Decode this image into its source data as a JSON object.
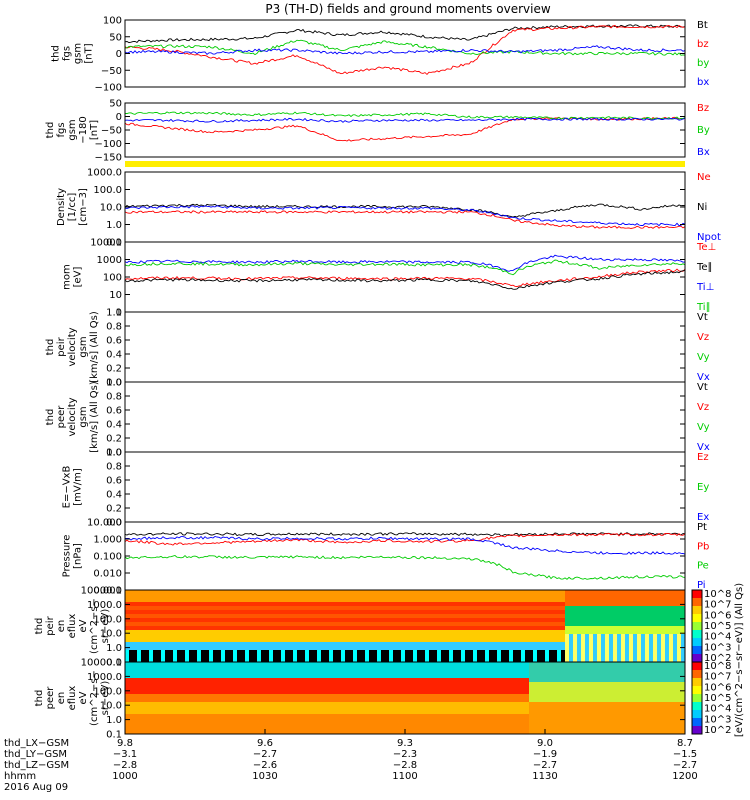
{
  "title": "P3 (TH-D) fields and ground moments overview",
  "chart_data": [
    {
      "type": "line",
      "ylabel": [
        "thd",
        "fgs",
        "gsm",
        "[nT]"
      ],
      "ylim": [
        -100,
        100
      ],
      "yticks": [
        "100",
        "50",
        "0",
        "−50",
        "−100"
      ],
      "series": [
        {
          "name": "Bt",
          "color": "#000000",
          "values": [
            35,
            40,
            42,
            45,
            70,
            55,
            65,
            50,
            40,
            75,
            80,
            82,
            82,
            80
          ]
        },
        {
          "name": "bz",
          "color": "#ff0000",
          "values": [
            20,
            10,
            -10,
            -30,
            -5,
            -60,
            -40,
            -60,
            -30,
            70,
            75,
            80,
            80,
            80
          ]
        },
        {
          "name": "by",
          "color": "#00cc00",
          "values": [
            20,
            22,
            20,
            0,
            40,
            10,
            35,
            20,
            0,
            5,
            0,
            0,
            0,
            -2
          ]
        },
        {
          "name": "bx",
          "color": "#0000ff",
          "values": [
            5,
            5,
            0,
            10,
            10,
            0,
            5,
            5,
            10,
            5,
            10,
            20,
            10,
            10
          ]
        }
      ]
    },
    {
      "type": "line",
      "ylabel": [
        "thd",
        "fgs",
        "gsm",
        "−180",
        "[nT]"
      ],
      "ylim": [
        -175,
        75
      ],
      "yticks": [
        "50",
        "0",
        "−50",
        "−100",
        "−150"
      ],
      "series": [
        {
          "name": "Bz",
          "color": "#ff0000",
          "values": [
            -20,
            -40,
            -60,
            -50,
            -30,
            -100,
            -90,
            -80,
            -70,
            0,
            5,
            0,
            2,
            5
          ]
        },
        {
          "name": "By",
          "color": "#00cc00",
          "values": [
            25,
            30,
            28,
            20,
            30,
            15,
            20,
            25,
            10,
            10,
            5,
            8,
            5,
            5
          ]
        },
        {
          "name": "Bx",
          "color": "#0000ff",
          "values": [
            -5,
            -5,
            -10,
            -5,
            0,
            -10,
            -5,
            -5,
            -5,
            0,
            0,
            0,
            0,
            0
          ]
        }
      ]
    },
    {
      "type": "line",
      "ylabel": [
        "Density",
        "[1/cc]",
        "[cm−3]"
      ],
      "yscale": "log",
      "ylim": [
        0.1,
        2000
      ],
      "yticks": [
        "1000.0",
        "100.0",
        "10.0",
        "1.0",
        "0.1"
      ],
      "series": [
        {
          "name": "Ne",
          "color": "#ff0000",
          "values": [
            7,
            7,
            7,
            7,
            7,
            7,
            7,
            7,
            7,
            2,
            1,
            0.8,
            0.8,
            0.8
          ]
        },
        {
          "name": "Ni",
          "color": "#000000",
          "values": [
            15,
            18,
            18,
            15,
            15,
            15,
            15,
            15,
            10,
            3,
            8,
            20,
            10,
            20
          ]
        },
        {
          "name": "Npot",
          "color": "#0000ff",
          "values": [
            12,
            14,
            15,
            12,
            12,
            13,
            12,
            12,
            9,
            3,
            2,
            1.5,
            1.2,
            1.2
          ]
        }
      ]
    },
    {
      "type": "line",
      "ylabel": [
        "mom",
        "[eV]"
      ],
      "yscale": "log",
      "ylim": [
        1,
        10000
      ],
      "yticks": [
        "10000",
        "1000",
        "100",
        "10",
        "1"
      ],
      "series": [
        {
          "name": "Te⊥",
          "color": "#ff0000",
          "values": [
            80,
            90,
            85,
            80,
            90,
            85,
            80,
            85,
            80,
            30,
            60,
            100,
            200,
            250
          ]
        },
        {
          "name": "Te∥",
          "color": "#000000",
          "values": [
            60,
            70,
            65,
            60,
            70,
            65,
            60,
            70,
            60,
            20,
            50,
            80,
            150,
            200
          ]
        },
        {
          "name": "Ti⊥",
          "color": "#0000ff",
          "values": [
            700,
            800,
            750,
            700,
            800,
            700,
            750,
            700,
            700,
            200,
            1500,
            1000,
            1000,
            800
          ]
        },
        {
          "name": "Ti∥",
          "color": "#00cc00",
          "values": [
            500,
            600,
            550,
            500,
            600,
            500,
            550,
            500,
            500,
            150,
            800,
            300,
            500,
            600
          ]
        }
      ]
    },
    {
      "type": "line",
      "ylabel": [
        "thd",
        "peir",
        "velocity",
        "gsm",
        "[km/s] (All Qs)"
      ],
      "ylim": [
        0,
        1
      ],
      "yticks": [
        "1.0",
        "0.8",
        "0.6",
        "0.4",
        "0.2",
        "0.0"
      ],
      "series": [
        {
          "name": "Vt",
          "color": "#000000"
        },
        {
          "name": "Vz",
          "color": "#ff0000"
        },
        {
          "name": "Vy",
          "color": "#00cc00"
        },
        {
          "name": "Vx",
          "color": "#0000ff"
        }
      ]
    },
    {
      "type": "line",
      "ylabel": [
        "thd",
        "peer",
        "velocity",
        "gsm",
        "[km/s] (All Qs)"
      ],
      "ylim": [
        0,
        1
      ],
      "yticks": [
        "1.0",
        "0.8",
        "0.6",
        "0.4",
        "0.2",
        "0.0"
      ],
      "series": [
        {
          "name": "Vt",
          "color": "#000000"
        },
        {
          "name": "Vz",
          "color": "#ff0000"
        },
        {
          "name": "Vy",
          "color": "#00cc00"
        },
        {
          "name": "Vx",
          "color": "#0000ff"
        }
      ]
    },
    {
      "type": "line",
      "ylabel": [
        "E=−VxB",
        "[mV/m]"
      ],
      "ylim": [
        0,
        1
      ],
      "yticks": [
        "1.0",
        "0.8",
        "0.6",
        "0.4",
        "0.2",
        "0.0"
      ],
      "series": [
        {
          "name": "Ez",
          "color": "#ff0000"
        },
        {
          "name": "Ey",
          "color": "#00cc00"
        },
        {
          "name": "Ex",
          "color": "#0000ff"
        }
      ]
    },
    {
      "type": "line",
      "ylabel": [
        "Pressure",
        "[nPa]"
      ],
      "yscale": "log",
      "ylim": [
        0.001,
        10
      ],
      "yticks": [
        "10.000",
        "1.000",
        "0.100",
        "0.010",
        "0.001"
      ],
      "series": [
        {
          "name": "Pt",
          "color": "#000000",
          "values": [
            1.8,
            2.0,
            2.0,
            1.8,
            2.0,
            1.9,
            2.0,
            2.0,
            1.9,
            1.8,
            2.0,
            2.0,
            2.0,
            2.0
          ]
        },
        {
          "name": "Pb",
          "color": "#ff0000",
          "values": [
            0.8,
            0.5,
            0.6,
            0.7,
            0.9,
            0.6,
            0.8,
            0.7,
            0.8,
            1.5,
            1.8,
            1.8,
            1.8,
            1.8
          ]
        },
        {
          "name": "Pe",
          "color": "#00cc00",
          "values": [
            0.08,
            0.09,
            0.09,
            0.08,
            0.09,
            0.08,
            0.09,
            0.08,
            0.07,
            0.01,
            0.005,
            0.005,
            0.006,
            0.006
          ]
        },
        {
          "name": "Pi",
          "color": "#0000ff",
          "values": [
            1.0,
            1.2,
            1.2,
            1.0,
            1.1,
            1.0,
            1.1,
            1.0,
            1.0,
            0.3,
            0.2,
            0.15,
            0.15,
            0.15
          ]
        }
      ]
    },
    {
      "type": "heatmap",
      "ylabel": [
        "thd",
        "peir",
        "en",
        "eflux",
        "eV",
        "(cm^2−s−",
        "sr−eV)"
      ],
      "yscale": "log",
      "yticks": [
        "10000.0",
        "1000.0",
        "100.0",
        "10.0",
        "1.0",
        "0.1"
      ],
      "colorbar": {
        "ticks": [
          "10^8",
          "10^7",
          "10^6",
          "10^5",
          "10^4",
          "10^3",
          "10^2"
        ],
        "label": "[eV/(cm^2−s−sr−eV)] (All Qs)"
      }
    },
    {
      "type": "heatmap",
      "ylabel": [
        "thd",
        "peer",
        "en",
        "eflux",
        "eV",
        "(cm^2−s−",
        "sr−eV)"
      ],
      "yscale": "log",
      "yticks": [
        "10000.0",
        "1000.0",
        "100.0",
        "10.0",
        "1.0",
        "0.1"
      ],
      "colorbar": {
        "ticks": [
          "10^8",
          "10^7",
          "10^6",
          "10^5",
          "10^4",
          "10^3",
          "10^2"
        ]
      }
    }
  ],
  "xaxis": {
    "rows": [
      {
        "label": "thd_LX−GSM",
        "values": [
          "9.8",
          "9.6",
          "9.3",
          "9.0",
          "8.7"
        ]
      },
      {
        "label": "thd_LY−GSM",
        "values": [
          "−3.1",
          "−2.7",
          "−2.3",
          "−1.9",
          "−1.5"
        ]
      },
      {
        "label": "thd_LZ−GSM",
        "values": [
          "−2.8",
          "−2.6",
          "−2.8",
          "−2.7",
          "−2.7"
        ]
      },
      {
        "label": "hhmm",
        "values": [
          "1000",
          "1030",
          "1100",
          "1130",
          "1200"
        ]
      }
    ],
    "date": "2016 Aug 09"
  }
}
